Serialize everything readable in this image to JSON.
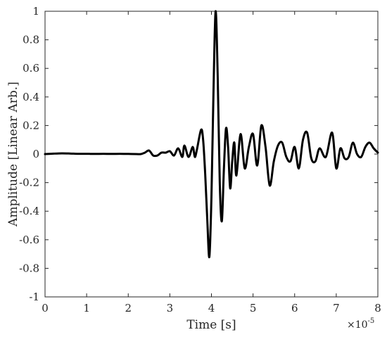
{
  "chart_data": {
    "type": "line",
    "title": "",
    "xlabel": "Time [s]",
    "ylabel": "Amplitude [Linear Arb.]",
    "x_multiplier_label": "×10",
    "x_multiplier_exp": "-5",
    "xlim": [
      0,
      8
    ],
    "ylim": [
      -1,
      1
    ],
    "x_tick_labels": [
      "0",
      "1",
      "2",
      "3",
      "4",
      "5",
      "6",
      "7",
      "8"
    ],
    "y_tick_labels": [
      "1",
      "0.8",
      "0.6",
      "0.4",
      "0.2",
      "0",
      "-0.2",
      "-0.4",
      "-0.6",
      "-0.8",
      "-1"
    ],
    "grid": false,
    "x_unit_scale": "1e-5 s",
    "series": [
      {
        "color": "#000000",
        "x": [
          0,
          0.2,
          0.4,
          0.6,
          0.8,
          1.0,
          1.2,
          1.4,
          1.6,
          1.8,
          2.0,
          2.2,
          2.3,
          2.4,
          2.5,
          2.6,
          2.7,
          2.8,
          2.9,
          3.0,
          3.1,
          3.2,
          3.3,
          3.35,
          3.45,
          3.55,
          3.6,
          3.65,
          3.75,
          3.8,
          3.85,
          3.9,
          3.95,
          4.0,
          4.05,
          4.1,
          4.15,
          4.2,
          4.25,
          4.3,
          4.35,
          4.4,
          4.45,
          4.5,
          4.55,
          4.6,
          4.7,
          4.8,
          4.9,
          5.0,
          5.1,
          5.2,
          5.3,
          5.4,
          5.5,
          5.6,
          5.7,
          5.8,
          5.9,
          6.0,
          6.1,
          6.2,
          6.3,
          6.4,
          6.5,
          6.6,
          6.75,
          6.9,
          7.0,
          7.1,
          7.2,
          7.3,
          7.4,
          7.5,
          7.6,
          7.7,
          7.8,
          7.9,
          8.0
        ],
        "y": [
          0,
          0.003,
          0.005,
          0.004,
          0.002,
          0.002,
          0.001,
          0.002,
          0.001,
          0.002,
          0.001,
          0.0,
          0.0,
          0.01,
          0.025,
          -0.01,
          -0.01,
          0.01,
          0.01,
          0.02,
          -0.01,
          0.04,
          -0.02,
          0.06,
          -0.02,
          0.05,
          -0.02,
          0.03,
          0.17,
          0.1,
          -0.14,
          -0.46,
          -0.72,
          -0.3,
          0.45,
          1.0,
          0.55,
          -0.2,
          -0.47,
          -0.1,
          0.18,
          0.05,
          -0.24,
          -0.05,
          0.08,
          -0.15,
          0.14,
          -0.1,
          0.05,
          0.14,
          -0.08,
          0.2,
          0.05,
          -0.22,
          -0.05,
          0.06,
          0.08,
          -0.02,
          -0.05,
          0.05,
          -0.1,
          0.1,
          0.15,
          -0.03,
          -0.05,
          0.04,
          -0.02,
          0.15,
          -0.1,
          0.04,
          -0.03,
          -0.02,
          0.08,
          0.0,
          -0.02,
          0.05,
          0.08,
          0.04,
          0.01
        ]
      }
    ]
  }
}
